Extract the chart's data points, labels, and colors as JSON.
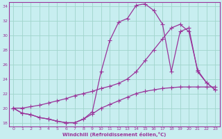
{
  "xlabel": "Windchill (Refroidissement éolien,°C)",
  "background_color": "#c8eef0",
  "grid_color": "#a0d4cc",
  "line_color": "#993399",
  "xlim": [
    -0.5,
    23.5
  ],
  "ylim": [
    17.5,
    34.5
  ],
  "yticks": [
    18,
    20,
    22,
    24,
    26,
    28,
    30,
    32,
    34
  ],
  "ytick_labels": [
    "18",
    "20",
    "22",
    "24",
    "26",
    "28",
    "30",
    "32",
    "34"
  ],
  "xticks": [
    0,
    1,
    2,
    3,
    4,
    5,
    6,
    7,
    8,
    9,
    10,
    11,
    12,
    13,
    14,
    15,
    16,
    17,
    18,
    19,
    20,
    21,
    22,
    23
  ],
  "series1_x": [
    0,
    1,
    2,
    3,
    4,
    5,
    6,
    7,
    8,
    9,
    10,
    11,
    12,
    13,
    14,
    15,
    16,
    17,
    18,
    19,
    20,
    21,
    22,
    23
  ],
  "series1_y": [
    20.0,
    19.3,
    19.1,
    18.7,
    18.5,
    18.2,
    18.0,
    18.0,
    18.5,
    19.5,
    25.0,
    29.3,
    31.8,
    32.3,
    34.1,
    34.3,
    33.4,
    31.5,
    25.0,
    30.5,
    31.0,
    25.0,
    23.5,
    22.5
  ],
  "series2_x": [
    0,
    1,
    2,
    3,
    4,
    5,
    6,
    7,
    8,
    9,
    10,
    11,
    12,
    13,
    14,
    15,
    16,
    17,
    18,
    19,
    20,
    21,
    22,
    23
  ],
  "series2_y": [
    20.0,
    20.0,
    20.2,
    20.4,
    20.7,
    21.0,
    21.3,
    21.7,
    22.0,
    22.3,
    22.7,
    23.0,
    23.4,
    24.0,
    25.0,
    26.5,
    28.0,
    29.5,
    31.0,
    31.5,
    30.5,
    25.2,
    23.5,
    22.5
  ],
  "series3_x": [
    0,
    1,
    2,
    3,
    4,
    5,
    6,
    7,
    8,
    9,
    10,
    11,
    12,
    13,
    14,
    15,
    16,
    17,
    18,
    19,
    20,
    21,
    22,
    23
  ],
  "series3_y": [
    20.0,
    19.3,
    19.1,
    18.7,
    18.5,
    18.2,
    18.0,
    18.0,
    18.5,
    19.2,
    20.0,
    20.5,
    21.0,
    21.5,
    22.0,
    22.3,
    22.5,
    22.7,
    22.8,
    22.9,
    22.9,
    22.9,
    22.9,
    22.9
  ]
}
